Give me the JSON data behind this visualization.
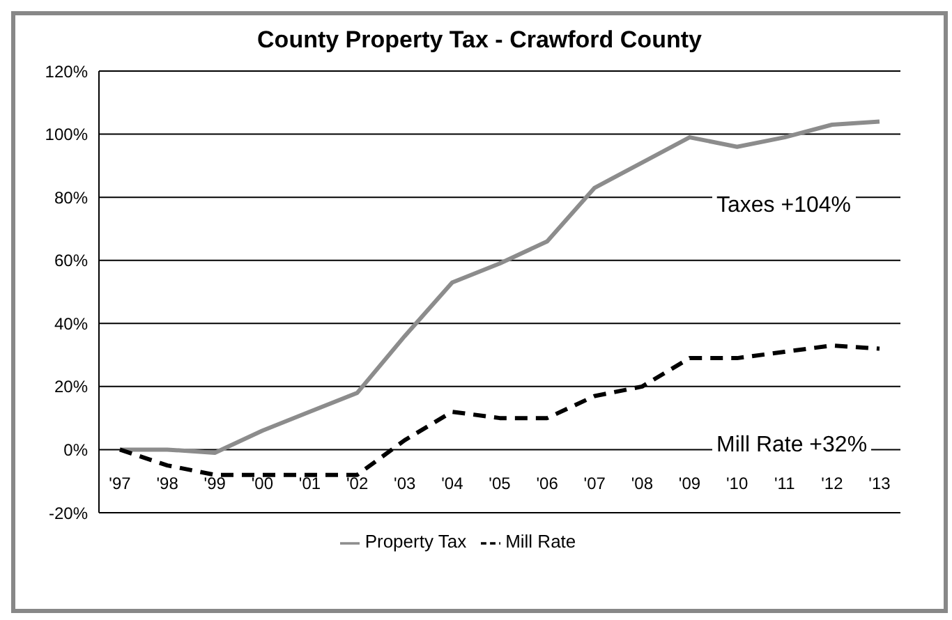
{
  "chart_data": {
    "type": "line",
    "title": "County Property Tax - Crawford County",
    "categories": [
      "'97",
      "'98",
      "'99",
      "'00",
      "'01",
      "'02",
      "'03",
      "'04",
      "'05",
      "'06",
      "'07",
      "'08",
      "'09",
      "'10",
      "'11",
      "'12",
      "'13"
    ],
    "series": [
      {
        "name": "Property Tax",
        "color": "#8c8c8c",
        "line_style": "solid",
        "values": [
          0,
          0,
          -1,
          6,
          12,
          18,
          36,
          53,
          59,
          66,
          83,
          91,
          99,
          96,
          99,
          103,
          104
        ]
      },
      {
        "name": "Mill Rate",
        "color": "#000000",
        "line_style": "dashed",
        "values": [
          0,
          -5,
          -8,
          -8,
          -8,
          -8,
          3,
          12,
          10,
          10,
          17,
          20,
          29,
          29,
          31,
          33,
          32
        ]
      }
    ],
    "ylim": [
      -20,
      120
    ],
    "yticks": [
      {
        "value": -20,
        "label": "-20%"
      },
      {
        "value": 0,
        "label": "0%"
      },
      {
        "value": 20,
        "label": "20%"
      },
      {
        "value": 40,
        "label": "40%"
      },
      {
        "value": 60,
        "label": "60%"
      },
      {
        "value": 80,
        "label": "80%"
      },
      {
        "value": 100,
        "label": "100%"
      },
      {
        "value": 120,
        "label": "120%"
      }
    ],
    "grid": "y",
    "legend": "bottom",
    "marker": "none",
    "annotations": [
      "Taxes +104%",
      "Mill Rate +32%"
    ]
  }
}
